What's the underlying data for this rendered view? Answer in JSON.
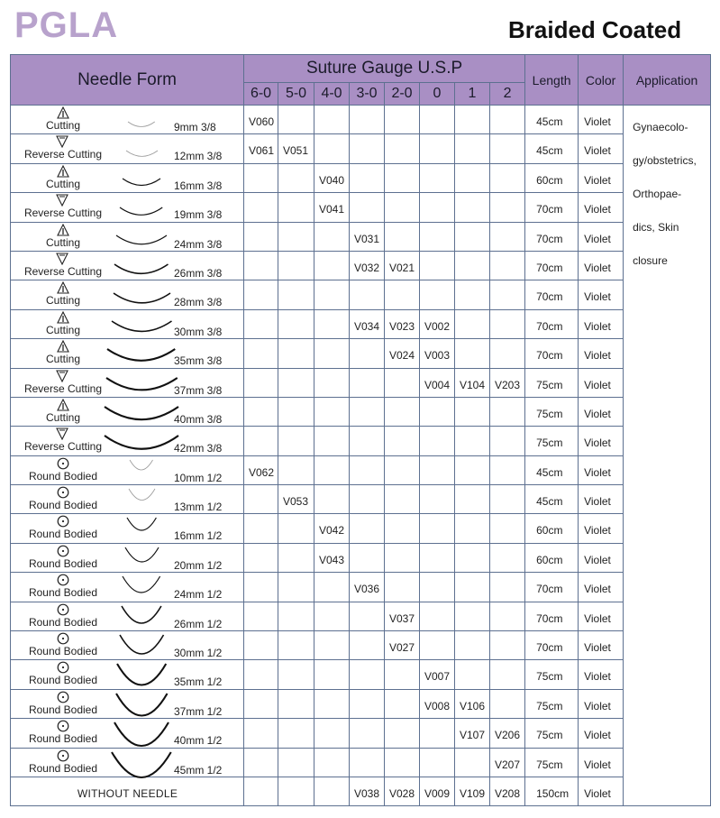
{
  "header": {
    "brand": "PGLA",
    "subtitle": "Braided Coated"
  },
  "columns": {
    "needle_form": "Needle Form",
    "gauge": "Suture Gauge U.S.P",
    "gauges": [
      "6-0",
      "5-0",
      "4-0",
      "3-0",
      "2-0",
      "0",
      "1",
      "2"
    ],
    "length": "Length",
    "color": "Color",
    "application": "Application"
  },
  "application_lines": [
    "Gynaecolo-",
    "gy/obstetrics,",
    "Orthopae-",
    "dics, Skin",
    "closure"
  ],
  "icons": {
    "Cutting": "triangle-up-icon",
    "Reverse Cutting": "triangle-down-icon",
    "Round Bodied": "circle-dot-icon"
  },
  "colors": {
    "header_bg": "#a98fc4",
    "brand": "#b8a2cc",
    "grid": "#5d7090"
  },
  "rows": [
    {
      "type": "Cutting",
      "size": "9mm  3/8",
      "mm": 9,
      "curve": "3/8",
      "codes": [
        "V060",
        "",
        "",
        "",
        "",
        "",
        "",
        ""
      ],
      "length": "45cm",
      "color": "Violet"
    },
    {
      "type": "Reverse Cutting",
      "size": "12mm  3/8",
      "mm": 12,
      "curve": "3/8",
      "codes": [
        "V061",
        "V051",
        "",
        "",
        "",
        "",
        "",
        ""
      ],
      "length": "45cm",
      "color": "Violet"
    },
    {
      "type": "Cutting",
      "size": "16mm  3/8",
      "mm": 16,
      "curve": "3/8",
      "codes": [
        "",
        "",
        "V040",
        "",
        "",
        "",
        "",
        ""
      ],
      "length": "60cm",
      "color": "Violet"
    },
    {
      "type": "Reverse Cutting",
      "size": "19mm  3/8",
      "mm": 19,
      "curve": "3/8",
      "codes": [
        "",
        "",
        "V041",
        "",
        "",
        "",
        "",
        ""
      ],
      "length": "70cm",
      "color": "Violet"
    },
    {
      "type": "Cutting",
      "size": "24mm  3/8",
      "mm": 24,
      "curve": "3/8",
      "codes": [
        "",
        "",
        "",
        "V031",
        "",
        "",
        "",
        ""
      ],
      "length": "70cm",
      "color": "Violet"
    },
    {
      "type": "Reverse Cutting",
      "size": "26mm  3/8",
      "mm": 26,
      "curve": "3/8",
      "codes": [
        "",
        "",
        "",
        "V032",
        "V021",
        "",
        "",
        ""
      ],
      "length": "70cm",
      "color": "Violet"
    },
    {
      "type": "Cutting",
      "size": "28mm  3/8",
      "mm": 28,
      "curve": "3/8",
      "codes": [
        "",
        "",
        "",
        "",
        "",
        "",
        "",
        ""
      ],
      "length": "70cm",
      "color": "Violet"
    },
    {
      "type": "Cutting",
      "size": "30mm  3/8",
      "mm": 30,
      "curve": "3/8",
      "codes": [
        "",
        "",
        "",
        "V034",
        "V023",
        "V002",
        "",
        ""
      ],
      "length": "70cm",
      "color": "Violet"
    },
    {
      "type": "Cutting",
      "size": "35mm  3/8",
      "mm": 35,
      "curve": "3/8",
      "codes": [
        "",
        "",
        "",
        "",
        "V024",
        "V003",
        "",
        ""
      ],
      "length": "70cm",
      "color": "Violet"
    },
    {
      "type": "Reverse Cutting",
      "size": "37mm  3/8",
      "mm": 37,
      "curve": "3/8",
      "codes": [
        "",
        "",
        "",
        "",
        "",
        "V004",
        "V104",
        "V203"
      ],
      "length": "75cm",
      "color": "Violet"
    },
    {
      "type": "Cutting",
      "size": "40mm  3/8",
      "mm": 40,
      "curve": "3/8",
      "codes": [
        "",
        "",
        "",
        "",
        "",
        "",
        "",
        ""
      ],
      "length": "75cm",
      "color": "Violet"
    },
    {
      "type": "Reverse Cutting",
      "size": "42mm  3/8",
      "mm": 42,
      "curve": "3/8",
      "codes": [
        "",
        "",
        "",
        "",
        "",
        "",
        "",
        ""
      ],
      "length": "75cm",
      "color": "Violet"
    },
    {
      "type": "Round Bodied",
      "size": "10mm  1/2",
      "mm": 10,
      "curve": "1/2",
      "codes": [
        "V062",
        "",
        "",
        "",
        "",
        "",
        "",
        ""
      ],
      "length": "45cm",
      "color": "Violet"
    },
    {
      "type": "Round Bodied",
      "size": "13mm  1/2",
      "mm": 13,
      "curve": "1/2",
      "codes": [
        "",
        "V053",
        "",
        "",
        "",
        "",
        "",
        ""
      ],
      "length": "45cm",
      "color": "Violet"
    },
    {
      "type": "Round Bodied",
      "size": "16mm  1/2",
      "mm": 16,
      "curve": "1/2",
      "codes": [
        "",
        "",
        "V042",
        "",
        "",
        "",
        "",
        ""
      ],
      "length": "60cm",
      "color": "Violet"
    },
    {
      "type": "Round Bodied",
      "size": "20mm  1/2",
      "mm": 20,
      "curve": "1/2",
      "codes": [
        "",
        "",
        "V043",
        "",
        "",
        "",
        "",
        ""
      ],
      "length": "60cm",
      "color": "Violet"
    },
    {
      "type": "Round Bodied",
      "size": "24mm  1/2",
      "mm": 24,
      "curve": "1/2",
      "codes": [
        "",
        "",
        "",
        "V036",
        "",
        "",
        "",
        ""
      ],
      "length": "70cm",
      "color": "Violet"
    },
    {
      "type": "Round Bodied",
      "size": "26mm  1/2",
      "mm": 26,
      "curve": "1/2",
      "codes": [
        "",
        "",
        "",
        "",
        "V037",
        "",
        "",
        ""
      ],
      "length": "70cm",
      "color": "Violet"
    },
    {
      "type": "Round Bodied",
      "size": "30mm  1/2",
      "mm": 30,
      "curve": "1/2",
      "codes": [
        "",
        "",
        "",
        "",
        "V027",
        "",
        "",
        ""
      ],
      "length": "70cm",
      "color": "Violet"
    },
    {
      "type": "Round Bodied",
      "size": "35mm  1/2",
      "mm": 35,
      "curve": "1/2",
      "codes": [
        "",
        "",
        "",
        "",
        "",
        "V007",
        "",
        ""
      ],
      "length": "75cm",
      "color": "Violet"
    },
    {
      "type": "Round Bodied",
      "size": "37mm  1/2",
      "mm": 37,
      "curve": "1/2",
      "codes": [
        "",
        "",
        "",
        "",
        "",
        "V008",
        "V106",
        ""
      ],
      "length": "75cm",
      "color": "Violet"
    },
    {
      "type": "Round Bodied",
      "size": "40mm  1/2",
      "mm": 40,
      "curve": "1/2",
      "codes": [
        "",
        "",
        "",
        "",
        "",
        "",
        "V107",
        "V206"
      ],
      "length": "75cm",
      "color": "Violet"
    },
    {
      "type": "Round Bodied",
      "size": "45mm  1/2",
      "mm": 45,
      "curve": "1/2",
      "codes": [
        "",
        "",
        "",
        "",
        "",
        "",
        "",
        "V207"
      ],
      "length": "75cm",
      "color": "Violet"
    },
    {
      "type": "WITHOUT NEEDLE",
      "size": "",
      "mm": 0,
      "curve": "",
      "codes": [
        "",
        "",
        "",
        "V038",
        "V028",
        "V009",
        "V109",
        "V208"
      ],
      "length": "150cm",
      "color": "Violet"
    }
  ]
}
